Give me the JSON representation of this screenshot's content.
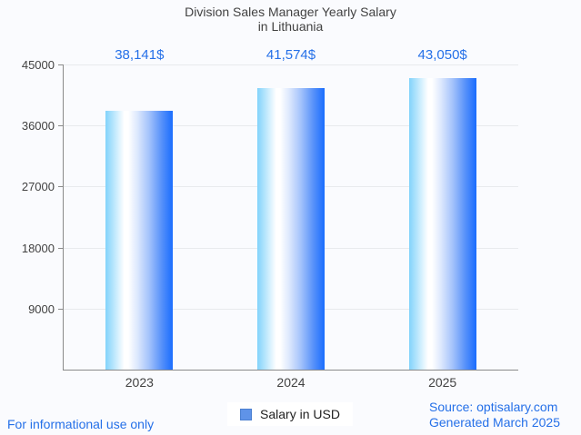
{
  "page": {
    "background": "#fafbfe",
    "footer_left": "For informational use only",
    "footer_right_line1": "Source: optisalary.com",
    "footer_right_line2": "Generated March 2025"
  },
  "chart_data": {
    "type": "bar",
    "title_line1": "Division Sales Manager Yearly Salary",
    "title_line2": "in Lithuania",
    "categories": [
      "2023",
      "2024",
      "2025"
    ],
    "values": [
      38141,
      41574,
      43050
    ],
    "value_labels": [
      "38,141$",
      "41,574$",
      "43,050$"
    ],
    "series_name": "Salary in USD",
    "ylim": [
      0,
      45000
    ],
    "yticks": [
      9000,
      18000,
      27000,
      36000,
      45000
    ],
    "grid": true,
    "legend_position": "bottom-center",
    "colors": {
      "bar_gradient_stops": [
        "#82d3fb 0%",
        "#ffffff 28%",
        "#ffffff 34%",
        "#dbe7fd 48%",
        "#a3c2fb 65%",
        "#5590fa 84%",
        "#1a6dfe 100%"
      ],
      "value_label_color": "#2570e8",
      "axis_text": "#424242",
      "gridline": "#e8eaed",
      "axis_line": "#8a8a8a",
      "accent_blue": "#2570e8",
      "legend_swatch": "#5f93e8"
    }
  }
}
